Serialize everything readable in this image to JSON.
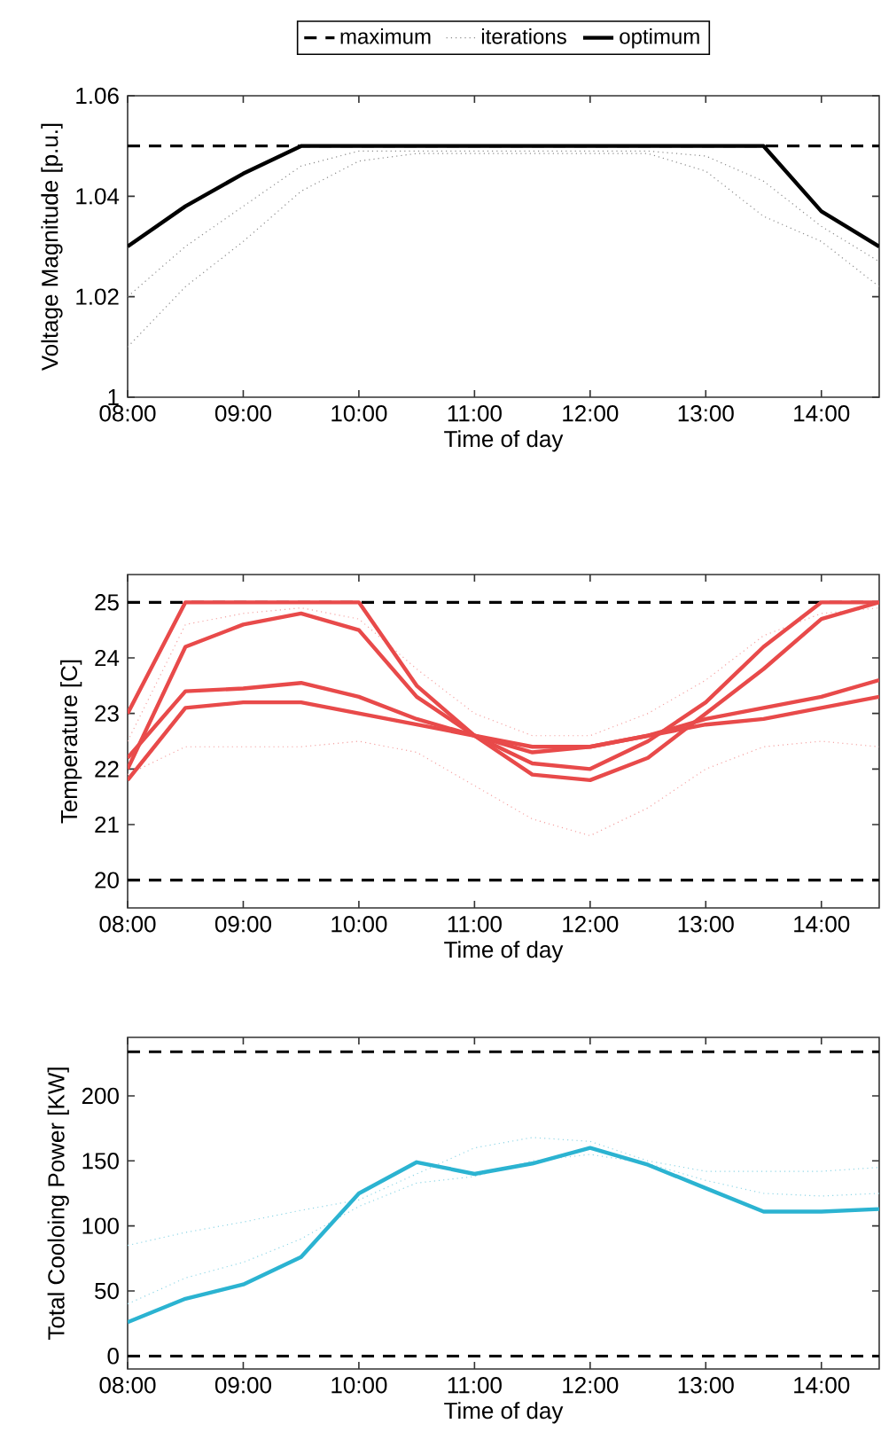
{
  "chart_data": [
    {
      "type": "line",
      "xlabel": "Time of day",
      "ylabel": "Voltage Magnitude [p.u.]",
      "x": [
        8,
        8.5,
        9,
        9.5,
        10,
        10.5,
        11,
        11.5,
        12,
        12.5,
        13,
        13.5,
        14,
        14.5
      ],
      "xlim": [
        8,
        14.5
      ],
      "ylim": [
        1,
        1.06
      ],
      "xticks": [
        {
          "value": 8,
          "label": "08:00"
        },
        {
          "value": 9,
          "label": "09:00"
        },
        {
          "value": 10,
          "label": "10:00"
        },
        {
          "value": 11,
          "label": "11:00"
        },
        {
          "value": 12,
          "label": "12:00"
        },
        {
          "value": 13,
          "label": "13:00"
        },
        {
          "value": 14,
          "label": "14:00"
        }
      ],
      "yticks": [
        1,
        1.02,
        1.04,
        1.06
      ],
      "legend": "top",
      "ref_lines": [
        {
          "axis": "y",
          "value": 1.05,
          "label": "maximum",
          "color": "#000000",
          "line_style": "dashed"
        }
      ],
      "series": [
        {
          "name": "iterations",
          "color": "#8c8c8c",
          "line_style": "dotted",
          "values": [
            1.01,
            1.022,
            1.031,
            1.041,
            1.047,
            1.0485,
            1.0485,
            1.0485,
            1.0485,
            1.0485,
            1.045,
            1.036,
            1.031,
            1.022
          ]
        },
        {
          "color": "#8c8c8c",
          "line_style": "dotted",
          "values": [
            1.02,
            1.03,
            1.038,
            1.046,
            1.049,
            1.049,
            1.049,
            1.049,
            1.049,
            1.049,
            1.048,
            1.043,
            1.034,
            1.027
          ]
        },
        {
          "name": "optimum",
          "color": "#000000",
          "line_style": "solid",
          "values": [
            1.03,
            1.038,
            1.0445,
            1.05,
            1.05,
            1.05,
            1.05,
            1.05,
            1.05,
            1.05,
            1.05,
            1.05,
            1.037,
            1.03
          ]
        }
      ]
    },
    {
      "type": "line",
      "xlabel": "Time of day",
      "ylabel": "Temperature [C]",
      "x": [
        8,
        8.5,
        9,
        9.5,
        10,
        10.5,
        11,
        11.5,
        12,
        12.5,
        13,
        13.5,
        14,
        14.5
      ],
      "xlim": [
        8,
        14.5
      ],
      "ylim": [
        19.5,
        25.5
      ],
      "xticks": [
        {
          "value": 8,
          "label": "08:00"
        },
        {
          "value": 9,
          "label": "09:00"
        },
        {
          "value": 10,
          "label": "10:00"
        },
        {
          "value": 11,
          "label": "11:00"
        },
        {
          "value": 12,
          "label": "12:00"
        },
        {
          "value": 13,
          "label": "13:00"
        },
        {
          "value": 14,
          "label": "14:00"
        }
      ],
      "yticks": [
        20,
        21,
        22,
        23,
        24,
        25
      ],
      "ref_lines": [
        {
          "axis": "y",
          "value": 25,
          "color": "#000000",
          "line_style": "dashed"
        },
        {
          "axis": "y",
          "value": 20,
          "color": "#000000",
          "line_style": "dashed"
        }
      ],
      "series": [
        {
          "color": "#f4a3a3",
          "line_style": "dotted",
          "values": [
            21.9,
            22.4,
            22.4,
            22.4,
            22.5,
            22.3,
            21.7,
            21.1,
            20.8,
            21.3,
            22.0,
            22.4,
            22.5,
            22.4
          ]
        },
        {
          "color": "#f4a3a3",
          "line_style": "dotted",
          "values": [
            22.5,
            24.6,
            24.8,
            24.9,
            24.7,
            23.8,
            23.0,
            22.6,
            22.6,
            23.0,
            23.6,
            24.4,
            24.8,
            24.9
          ]
        },
        {
          "color": "#e84a4a",
          "line_style": "solid",
          "values": [
            23.0,
            25,
            25,
            25,
            25,
            23.5,
            22.6,
            22.1,
            22.0,
            22.5,
            23.2,
            24.2,
            25,
            25
          ]
        },
        {
          "color": "#e84a4a",
          "line_style": "solid",
          "values": [
            22.0,
            24.2,
            24.6,
            24.8,
            24.5,
            23.3,
            22.6,
            21.9,
            21.8,
            22.2,
            23.0,
            23.8,
            24.7,
            25
          ]
        },
        {
          "color": "#e84a4a",
          "line_style": "solid",
          "values": [
            22.2,
            23.4,
            23.45,
            23.55,
            23.3,
            22.9,
            22.6,
            22.3,
            22.4,
            22.6,
            22.9,
            23.1,
            23.3,
            23.6
          ]
        },
        {
          "color": "#e84a4a",
          "line_style": "solid",
          "values": [
            21.8,
            23.1,
            23.2,
            23.2,
            23.0,
            22.8,
            22.6,
            22.4,
            22.4,
            22.6,
            22.8,
            22.9,
            23.1,
            23.3
          ]
        }
      ]
    },
    {
      "type": "line",
      "xlabel": "Time of day",
      "ylabel": "Total Cooloing Power [KW]",
      "x": [
        8,
        8.5,
        9,
        9.5,
        10,
        10.5,
        11,
        11.5,
        12,
        12.5,
        13,
        13.5,
        14,
        14.5
      ],
      "xlim": [
        8,
        14.5
      ],
      "ylim": [
        -10,
        245
      ],
      "xticks": [
        {
          "value": 8,
          "label": "08:00"
        },
        {
          "value": 9,
          "label": "09:00"
        },
        {
          "value": 10,
          "label": "10:00"
        },
        {
          "value": 11,
          "label": "11:00"
        },
        {
          "value": 12,
          "label": "12:00"
        },
        {
          "value": 13,
          "label": "13:00"
        },
        {
          "value": 14,
          "label": "14:00"
        }
      ],
      "yticks": [
        0,
        50,
        100,
        150,
        200
      ],
      "ref_lines": [
        {
          "axis": "y",
          "value": 234,
          "color": "#000000",
          "line_style": "dashed"
        },
        {
          "axis": "y",
          "value": 0,
          "color": "#000000",
          "line_style": "dashed"
        }
      ],
      "series": [
        {
          "color": "#8fd6e6",
          "line_style": "dotted",
          "values": [
            85,
            95,
            103,
            112,
            120,
            140,
            160,
            168,
            165,
            150,
            142,
            142,
            142,
            145
          ]
        },
        {
          "color": "#8fd6e6",
          "line_style": "dotted",
          "values": [
            40,
            60,
            72,
            90,
            115,
            133,
            138,
            150,
            155,
            148,
            135,
            125,
            123,
            125
          ]
        },
        {
          "color": "#2bb3d1",
          "line_style": "solid",
          "values": [
            26,
            44,
            55,
            76,
            125,
            149,
            140,
            148,
            160,
            147,
            129,
            111,
            111,
            113
          ]
        }
      ]
    }
  ]
}
